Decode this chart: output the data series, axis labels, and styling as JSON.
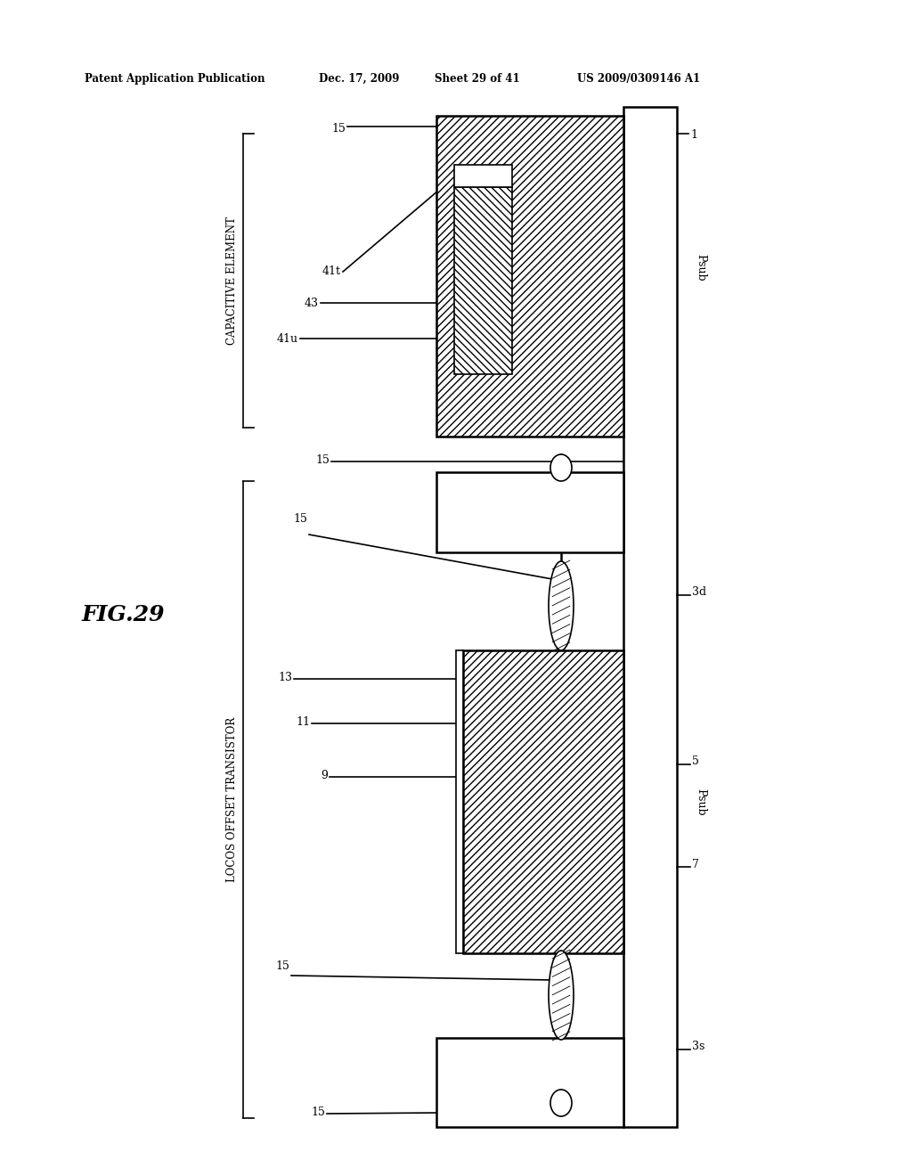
{
  "background_color": "#ffffff",
  "header_text": "Patent Application Publication",
  "header_date": "Dec. 17, 2009",
  "header_sheet": "Sheet 29 of 41",
  "header_patent": "US 2009/0309146 A1",
  "fig_label": "FIG.29",
  "label_capacitive": "CAPACITIVE ELEMENT",
  "label_locos": "LOCOS OFFSET TRANSISTOR"
}
